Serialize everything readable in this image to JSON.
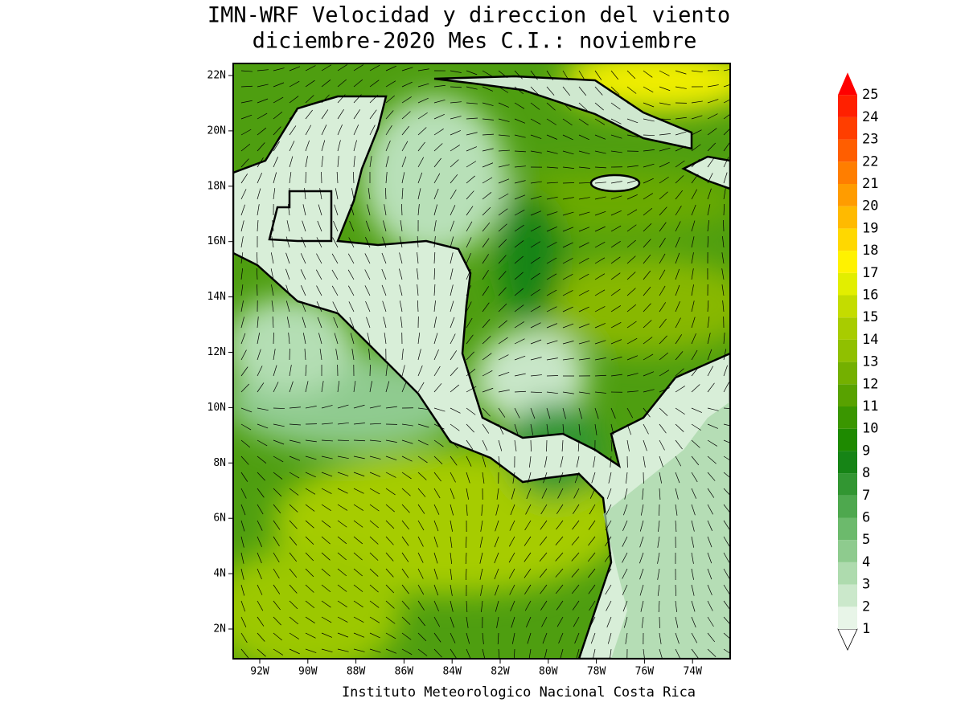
{
  "title": [
    "IMN-WRF Velocidad y direccion del viento",
    "diciembre-2020 Mes C.I.: noviembre"
  ],
  "map": {
    "lat_ticks": [
      {
        "value": 22,
        "label": "22N"
      },
      {
        "value": 20,
        "label": "20N"
      },
      {
        "value": 18,
        "label": "18N"
      },
      {
        "value": 16,
        "label": "16N"
      },
      {
        "value": 14,
        "label": "14N"
      },
      {
        "value": 12,
        "label": "12N"
      },
      {
        "value": 10,
        "label": "10N"
      },
      {
        "value": 8,
        "label": "8N"
      },
      {
        "value": 6,
        "label": "6N"
      },
      {
        "value": 4,
        "label": "4N"
      },
      {
        "value": 2,
        "label": "2N"
      }
    ],
    "lon_ticks": [
      {
        "value": -92,
        "label": "92W"
      },
      {
        "value": -90,
        "label": "90W"
      },
      {
        "value": -88,
        "label": "88W"
      },
      {
        "value": -86,
        "label": "86W"
      },
      {
        "value": -84,
        "label": "84W"
      },
      {
        "value": -82,
        "label": "82W"
      },
      {
        "value": -80,
        "label": "80W"
      },
      {
        "value": -78,
        "label": "78W"
      },
      {
        "value": -76,
        "label": "76W"
      },
      {
        "value": -74,
        "label": "74W"
      }
    ]
  },
  "colorbar": {
    "levels": [
      1,
      2,
      3,
      4,
      5,
      6,
      7,
      8,
      9,
      10,
      11,
      12,
      13,
      14,
      15,
      16,
      17,
      18,
      19,
      20,
      21,
      22,
      23,
      24,
      25
    ],
    "colors": [
      "#e8f5e8",
      "#cbe8cb",
      "#aedbae",
      "#8ecb8e",
      "#6cba6c",
      "#4ea84e",
      "#329632",
      "#168416",
      "#1e8a00",
      "#3a9600",
      "#58a200",
      "#74b000",
      "#90c000",
      "#a8cc00",
      "#c4dc00",
      "#e2ee00",
      "#fff200",
      "#ffd800",
      "#ffba00",
      "#ff9c00",
      "#ff7e00",
      "#ff5e00",
      "#ff3e00",
      "#ff2000",
      "#ff0000"
    ]
  },
  "footer": "Instituto Meteorologico Nacional Costa Rica"
}
